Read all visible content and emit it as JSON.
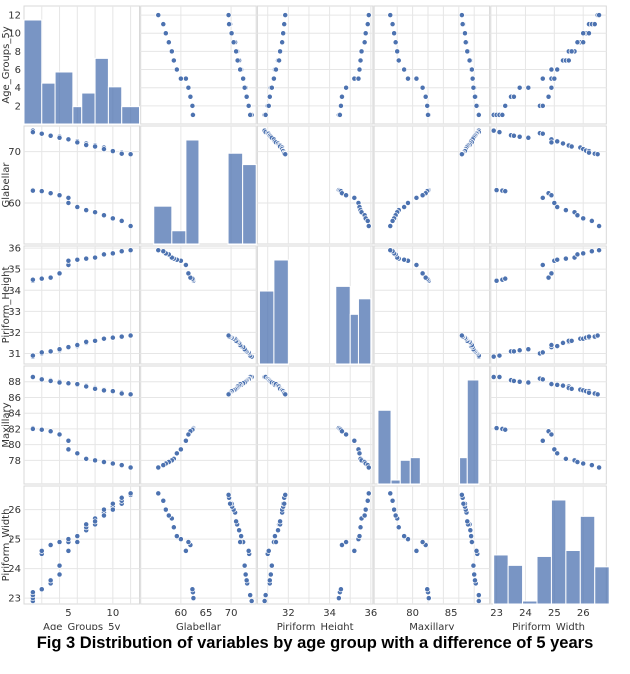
{
  "caption": "Fig 3 Distribution of variables by age group with a difference of 5 years",
  "colors": {
    "marker": "#4c72b0",
    "grid": "#e6e6e6",
    "frame": "#d9d9d9"
  },
  "chart_data": {
    "type": "scatter",
    "subtype": "pairplot",
    "grid": true,
    "variables": [
      "Age_Groups_5y",
      "Glabellar",
      "Piriform_Height",
      "Maxillary",
      "Piriform_Width"
    ],
    "ranges": {
      "Age_Groups_5y": [
        0,
        13
      ],
      "Glabellar": [
        52,
        75
      ],
      "Piriform_Height": [
        30.5,
        36.1
      ],
      "Maxillary": [
        75,
        90
      ],
      "Piriform_Width": [
        22.8,
        26.8
      ]
    },
    "ticks": {
      "Age_Groups_5y": [
        2,
        4,
        6,
        8,
        10,
        12
      ],
      "Glabellar": [
        60,
        70
      ],
      "Piriform_Height": [
        31,
        32,
        33,
        34,
        35,
        36
      ],
      "Maxillary": [
        78,
        80,
        82,
        84,
        86,
        88
      ],
      "Piriform_Width": [
        23,
        24,
        25,
        26
      ]
    },
    "xticks": {
      "Age_Groups_5y": [
        5,
        10
      ],
      "Glabellar": [
        60,
        65,
        70
      ],
      "Piriform_Height": [
        32,
        34,
        36
      ],
      "Maxillary": [
        80,
        85
      ],
      "Piriform_Width": [
        23,
        24,
        25,
        26
      ]
    },
    "observations": [
      [
        1,
        74.1,
        30.85,
        88.6,
        22.9
      ],
      [
        1,
        62.5,
        34.45,
        82.1,
        23.0
      ],
      [
        1,
        73.8,
        30.9,
        88.6,
        23.1
      ],
      [
        1,
        62.4,
        34.5,
        82.0,
        23.2
      ],
      [
        2,
        73.6,
        31.0,
        88.4,
        24.5
      ],
      [
        2,
        62.3,
        34.55,
        81.9,
        23.3
      ],
      [
        2,
        73.5,
        31.05,
        88.3,
        24.6
      ],
      [
        3,
        73.2,
        31.1,
        88.2,
        23.5
      ],
      [
        3,
        61.9,
        34.6,
        81.7,
        24.8
      ],
      [
        3,
        73.1,
        31.1,
        88.1,
        23.6
      ],
      [
        4,
        72.9,
        31.15,
        88.0,
        23.8
      ],
      [
        4,
        61.5,
        34.8,
        81.3,
        24.9
      ],
      [
        4,
        72.7,
        31.2,
        87.9,
        24.1
      ],
      [
        5,
        72.4,
        31.3,
        87.8,
        24.9
      ],
      [
        5,
        61.0,
        35.2,
        80.5,
        24.6
      ],
      [
        5,
        60.0,
        35.4,
        79.4,
        25.0
      ],
      [
        6,
        72.0,
        31.35,
        87.6,
        25.1
      ],
      [
        6,
        59.2,
        35.45,
        78.9,
        25.1
      ],
      [
        6,
        71.8,
        31.4,
        87.7,
        24.9
      ],
      [
        7,
        71.6,
        31.5,
        87.5,
        25.3
      ],
      [
        7,
        58.6,
        35.5,
        78.2,
        25.4
      ],
      [
        7,
        71.3,
        31.55,
        87.4,
        25.5
      ],
      [
        8,
        71.2,
        31.6,
        87.2,
        25.5
      ],
      [
        8,
        58.2,
        35.55,
        78.0,
        25.7
      ],
      [
        8,
        71.0,
        31.6,
        87.1,
        25.6
      ],
      [
        9,
        70.8,
        31.7,
        87.0,
        25.9
      ],
      [
        9,
        57.6,
        35.7,
        77.8,
        25.8
      ],
      [
        9,
        70.5,
        31.7,
        86.9,
        26.0
      ],
      [
        10,
        70.2,
        31.75,
        86.8,
        26.1
      ],
      [
        10,
        57.0,
        35.75,
        77.6,
        26.0
      ],
      [
        10,
        70.1,
        31.75,
        86.8,
        26.2
      ],
      [
        11,
        69.8,
        31.8,
        86.6,
        26.2
      ],
      [
        11,
        56.5,
        35.85,
        77.4,
        26.3
      ],
      [
        11,
        69.6,
        31.8,
        86.5,
        26.4
      ],
      [
        12,
        69.5,
        31.85,
        86.4,
        26.5
      ],
      [
        12,
        55.5,
        35.9,
        77.1,
        26.55
      ]
    ],
    "histograms": {
      "Age_Groups_5y": {
        "edges": [
          0,
          2,
          3.5,
          5.5,
          6.5,
          8,
          9.5,
          11,
          13
        ],
        "counts": [
          8.4,
          3.3,
          4.2,
          1.4,
          2.5,
          5.3,
          3.0,
          1.4
        ]
      },
      "Glabellar": {
        "edges": [
          54.6,
          58.2,
          61.0,
          63.6,
          69.4,
          72.3,
          75.0
        ],
        "counts": [
          2,
          0.7,
          5.5,
          0,
          4.8,
          4.2
        ]
      },
      "Piriform_Height": {
        "edges": [
          30.6,
          31.3,
          32.0,
          34.3,
          35.0,
          35.4,
          36.0
        ],
        "counts": [
          4.7,
          6.7,
          0,
          5.0,
          3.2,
          4.2
        ]
      },
      "Maxillary": {
        "edges": [
          75.5,
          77.2,
          78.4,
          79.7,
          81.0,
          86.1,
          87.1,
          88.6
        ],
        "counts": [
          5.6,
          0.3,
          1.8,
          2.0,
          0,
          2.0,
          7.9
        ]
      },
      "Piriform_Width": {
        "edges": [
          22.9,
          23.4,
          23.9,
          24.4,
          24.9,
          25.4,
          25.9,
          26.4,
          26.9
        ],
        "counts": [
          3.3,
          2.6,
          0.2,
          3.2,
          7.0,
          3.6,
          5.9,
          2.5
        ]
      }
    },
    "axis_labels": {
      "x": [
        "Age_Groups_5y",
        "Glabellar",
        "Piriform_Height",
        "Maxillary",
        "Piriform_Width"
      ],
      "y": [
        "Age_Groups_5y",
        "Glabellar",
        "Piriform_Height",
        "Maxillary",
        "Piriform_Width"
      ]
    }
  }
}
